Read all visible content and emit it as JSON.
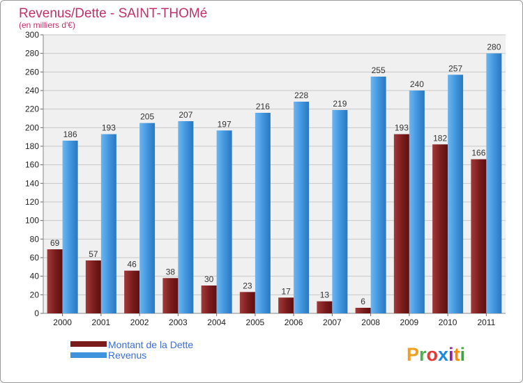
{
  "chart_data": {
    "type": "bar",
    "title": "Revenus/Dette - SAINT-THOMé",
    "subtitle": "(en milliers d'€)",
    "categories": [
      "2000",
      "2001",
      "2002",
      "2003",
      "2004",
      "2005",
      "2006",
      "2007",
      "2008",
      "2009",
      "2010",
      "2011"
    ],
    "series": [
      {
        "name": "Montant de la Dette",
        "color": "#7a1c1c",
        "values": [
          69,
          57,
          46,
          38,
          30,
          23,
          17,
          13,
          6,
          193,
          182,
          166
        ]
      },
      {
        "name": "Revenus",
        "color": "#3f93dc",
        "values": [
          186,
          193,
          205,
          207,
          197,
          216,
          228,
          219,
          255,
          240,
          257,
          280
        ]
      }
    ],
    "ylim": [
      0,
      300
    ],
    "yticks": [
      0,
      20,
      40,
      60,
      80,
      100,
      120,
      140,
      160,
      180,
      200,
      220,
      240,
      260,
      280,
      300
    ],
    "grid": true,
    "legend_position": "bottom-left"
  },
  "brand": {
    "letters": [
      "P",
      "r",
      "o",
      "x",
      "i",
      "t",
      "i"
    ],
    "colors": [
      "#f0a020",
      "#4caf50",
      "#e53935",
      "#1e88e5",
      "#8e24aa",
      "#fb8c00",
      "#43a047"
    ]
  }
}
